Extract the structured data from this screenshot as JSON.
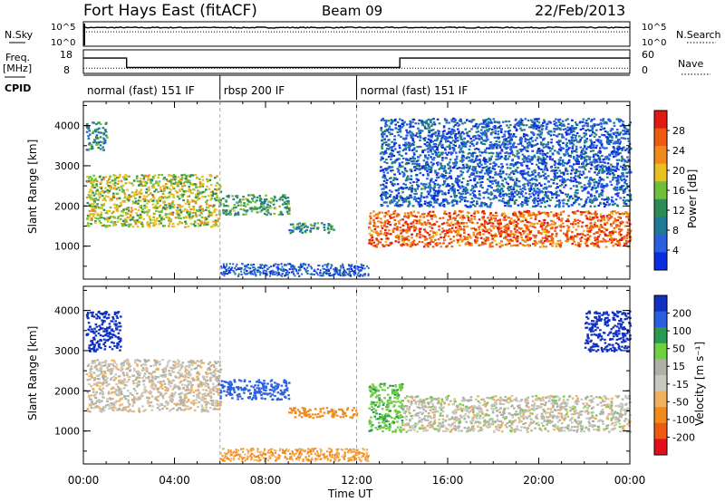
{
  "header": {
    "station": "Fort Hays East (fitACF)",
    "beam": "Beam 09",
    "date": "22/Feb/2013"
  },
  "strip_labels": {
    "nsky": "N.Sky",
    "nsearch": "N.Search",
    "freq_line1": "Freq.",
    "freq_line2": "[MHz]",
    "nave": "Nave",
    "cpid": "CPID",
    "noise_ticks_top": "10^5",
    "noise_ticks_bottom": "10^0",
    "freq_ticks": [
      "18",
      "8"
    ],
    "nave_ticks": [
      "60",
      "0"
    ]
  },
  "cpid_segments": [
    {
      "label": "normal (fast) 151 IF",
      "start": 0,
      "end": 6
    },
    {
      "label": "rbsp 200 IF",
      "start": 6,
      "end": 12
    },
    {
      "label": "normal (fast) 151 IF",
      "start": 12,
      "end": 24
    }
  ],
  "colors": {
    "power": [
      "#0b2be0",
      "#2a5fe0",
      "#1f7a9a",
      "#2e8b57",
      "#6fbf3a",
      "#e8c020",
      "#f08a1a",
      "#ee5a10",
      "#e01a10"
    ],
    "velocity": [
      "#e0101a",
      "#ee5a10",
      "#f08a1a",
      "#f0b060",
      "#c8c8c0",
      "#b0b0a8",
      "#6fd040",
      "#2a9a50",
      "#2a5fe0",
      "#1030c0"
    ]
  },
  "chart_data": [
    {
      "type": "line",
      "name": "noise",
      "xlim": [
        0,
        24
      ],
      "series": [
        {
          "name": "N.Sky",
          "x": [
            0,
            0.2,
            6,
            10,
            12,
            18,
            24
          ],
          "y": [
            4.6,
            4.7,
            4.6,
            4.7,
            4.6,
            4.7,
            4.6
          ]
        },
        {
          "name": "N.Search",
          "x": [
            0,
            24
          ],
          "y": [
            3.6,
            3.6
          ]
        }
      ]
    },
    {
      "type": "line",
      "name": "frequency",
      "xlim": [
        0,
        24
      ],
      "ylim": [
        8,
        18
      ],
      "series": [
        {
          "name": "Freq.",
          "x": [
            0,
            1.9,
            1.9,
            13.9,
            13.9,
            24
          ],
          "y": [
            14.5,
            14.5,
            10.5,
            10.5,
            14.5,
            14.5
          ]
        },
        {
          "name": "Nave",
          "x": [
            0,
            24
          ],
          "y": [
            10.2,
            10.2
          ]
        }
      ]
    },
    {
      "type": "heatmap",
      "name": "power",
      "xlabel": "",
      "ylabel": "Slant Range [km]",
      "xlim": [
        0,
        24
      ],
      "ylim": [
        180,
        4600
      ],
      "yticks": [
        1000,
        2000,
        3000,
        4000
      ],
      "colorbar": {
        "label": "Power [dB]",
        "ticks": [
          4,
          8,
          12,
          16,
          20,
          24,
          28
        ],
        "range": [
          0,
          32
        ]
      },
      "regions": [
        {
          "t": [
            0.1,
            6.0
          ],
          "r": [
            1500,
            2800
          ],
          "level": 0.55
        },
        {
          "t": [
            0.1,
            1.0
          ],
          "r": [
            3400,
            4100
          ],
          "level": 0.3
        },
        {
          "t": [
            5.9,
            9.0
          ],
          "r": [
            1800,
            2300
          ],
          "level": 0.4
        },
        {
          "t": [
            9.0,
            11.0
          ],
          "r": [
            1350,
            1600
          ],
          "level": 0.35
        },
        {
          "t": [
            12.5,
            24.0
          ],
          "r": [
            1000,
            1900
          ],
          "level": 0.85
        },
        {
          "t": [
            13.0,
            24.0
          ],
          "r": [
            2000,
            4200
          ],
          "level": 0.15
        }
      ]
    },
    {
      "type": "heatmap",
      "name": "velocity",
      "xlabel": "Time UT",
      "ylabel": "Slant Range [km]",
      "xlim": [
        0,
        24
      ],
      "ylim": [
        180,
        4600
      ],
      "yticks": [
        1000,
        2000,
        3000,
        4000
      ],
      "xticks": [
        "00:00",
        "04:00",
        "08:00",
        "12:00",
        "16:00",
        "20:00",
        "00:00"
      ],
      "colorbar": {
        "label": "Velocity [m s⁻¹]",
        "ticks": [
          200,
          100,
          50,
          15,
          -15,
          -50,
          -100,
          -200
        ],
        "range": [
          -250,
          250
        ]
      },
      "regions": [
        {
          "t": [
            0.1,
            6.0
          ],
          "r": [
            1500,
            2800
          ],
          "v": -5
        },
        {
          "t": [
            0.1,
            1.6
          ],
          "r": [
            3000,
            4000
          ],
          "v": 220
        },
        {
          "t": [
            5.9,
            9.0
          ],
          "r": [
            1800,
            2300
          ],
          "v": 120
        },
        {
          "t": [
            9.0,
            12.0
          ],
          "r": [
            1350,
            1600
          ],
          "v": -70
        },
        {
          "t": [
            12.5,
            14.0
          ],
          "r": [
            1000,
            2200
          ],
          "v": 40
        },
        {
          "t": [
            14.0,
            24.0
          ],
          "r": [
            1000,
            1900
          ],
          "v": 0
        },
        {
          "t": [
            22.0,
            24.0
          ],
          "r": [
            3000,
            4000
          ],
          "v": 220
        }
      ]
    }
  ]
}
